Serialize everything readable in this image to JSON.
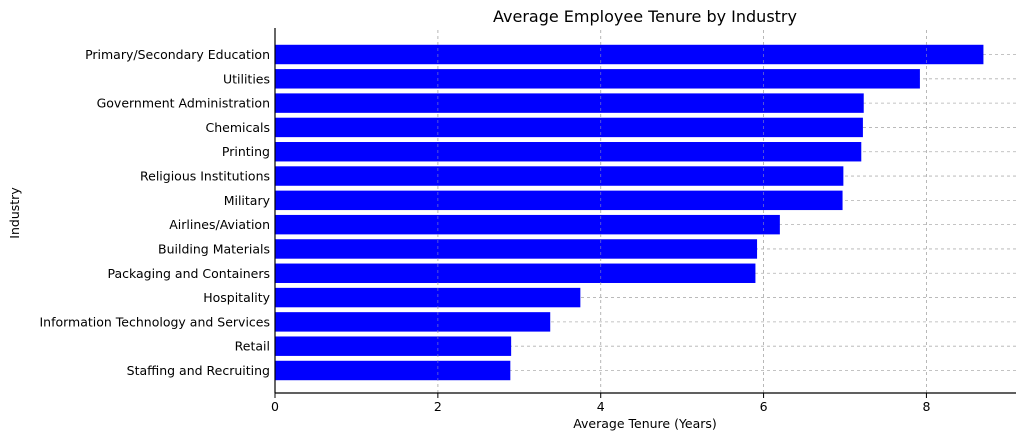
{
  "chart_data": {
    "type": "bar",
    "orientation": "horizontal",
    "title": "Average Employee Tenure by Industry",
    "xlabel": "Average Tenure (Years)",
    "ylabel": "Industry",
    "categories": [
      "Primary/Secondary Education",
      "Utilities",
      "Government Administration",
      "Chemicals",
      "Printing",
      "Religious Institutions",
      "Military",
      "Airlines/Aviation",
      "Building Materials",
      "Packaging and Containers",
      "Hospitality",
      "Information Technology and Services",
      "Retail",
      "Staffing and Recruiting"
    ],
    "values": [
      8.7,
      7.92,
      7.23,
      7.22,
      7.2,
      6.98,
      6.97,
      6.2,
      5.92,
      5.9,
      3.75,
      3.38,
      2.9,
      2.89
    ],
    "xlim": [
      0,
      9.1
    ],
    "xticks": [
      0,
      2,
      4,
      6,
      8
    ],
    "grid": true,
    "bar_color": "#0000ff"
  }
}
